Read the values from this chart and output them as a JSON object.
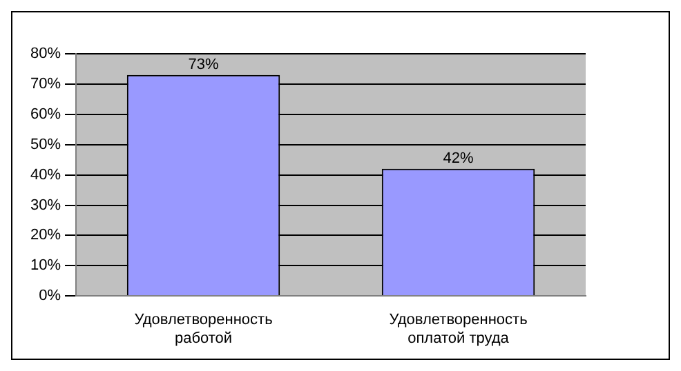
{
  "chart_data": {
    "type": "bar",
    "categories": [
      "Удовлетворенность работой",
      "Удовлетворенность оплатой труда"
    ],
    "values": [
      73,
      42
    ],
    "value_labels": [
      "73%",
      "42%"
    ],
    "color": "#9999ff",
    "ylim": [
      0,
      80
    ],
    "yticks": [
      {
        "value": 0,
        "label": "0%"
      },
      {
        "value": 10,
        "label": "10%"
      },
      {
        "value": 20,
        "label": "20%"
      },
      {
        "value": 30,
        "label": "30%"
      },
      {
        "value": 40,
        "label": "40%"
      },
      {
        "value": 50,
        "label": "50%"
      },
      {
        "value": 60,
        "label": "60%"
      },
      {
        "value": 70,
        "label": "70%"
      },
      {
        "value": 80,
        "label": "80%"
      }
    ],
    "grid": "y"
  }
}
